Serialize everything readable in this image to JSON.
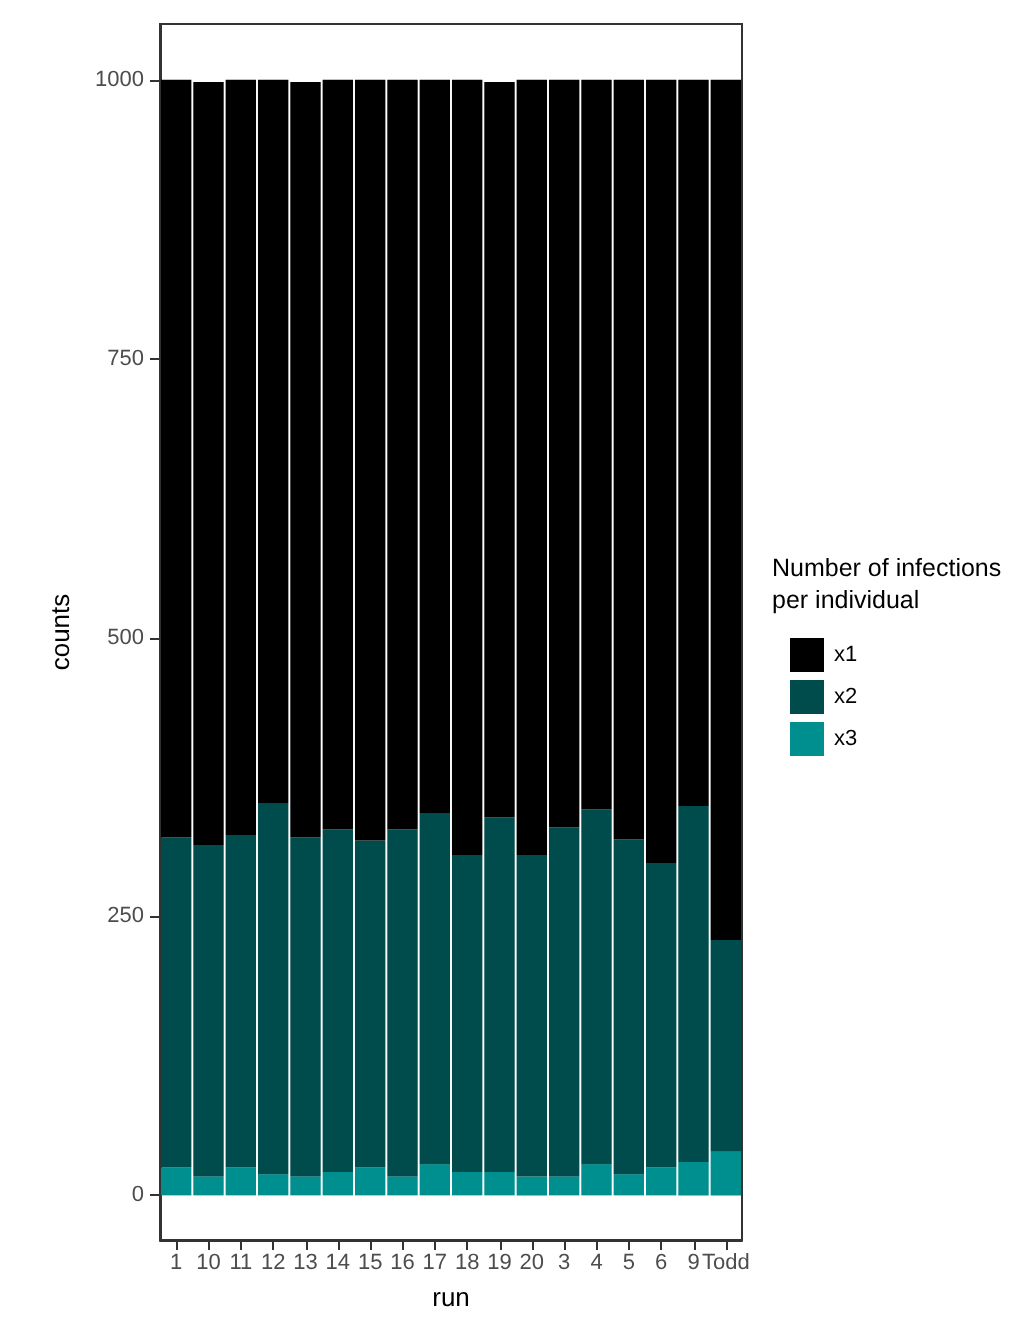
{
  "chart_data": {
    "type": "bar",
    "stacked": true,
    "xlabel": "run",
    "ylabel": "counts",
    "legend_title": "Number of infections\nper individual",
    "legend": "right",
    "categories": [
      "1",
      "10",
      "11",
      "12",
      "13",
      "14",
      "15",
      "16",
      "17",
      "18",
      "19",
      "20",
      "3",
      "4",
      "5",
      "6",
      "9",
      "Todd"
    ],
    "ylim": [
      -40,
      1050
    ],
    "yticks": [
      0,
      250,
      500,
      750,
      1000
    ],
    "grid": false,
    "series": [
      {
        "name": "x3",
        "color": "#008f8f",
        "values": [
          25,
          17,
          25,
          19,
          17,
          21,
          25,
          17,
          28,
          21,
          21,
          17,
          17,
          28,
          19,
          25,
          30,
          39
        ]
      },
      {
        "name": "x2",
        "color": "#004b4b",
        "values": [
          296,
          297,
          298,
          332,
          304,
          307,
          293,
          311,
          314,
          284,
          318,
          288,
          313,
          318,
          300,
          273,
          319,
          190
        ]
      },
      {
        "name": "x1",
        "color": "#000000",
        "values": [
          679,
          684,
          677,
          649,
          677,
          672,
          682,
          672,
          658,
          695,
          659,
          695,
          670,
          654,
          681,
          702,
          651,
          771
        ]
      }
    ]
  }
}
